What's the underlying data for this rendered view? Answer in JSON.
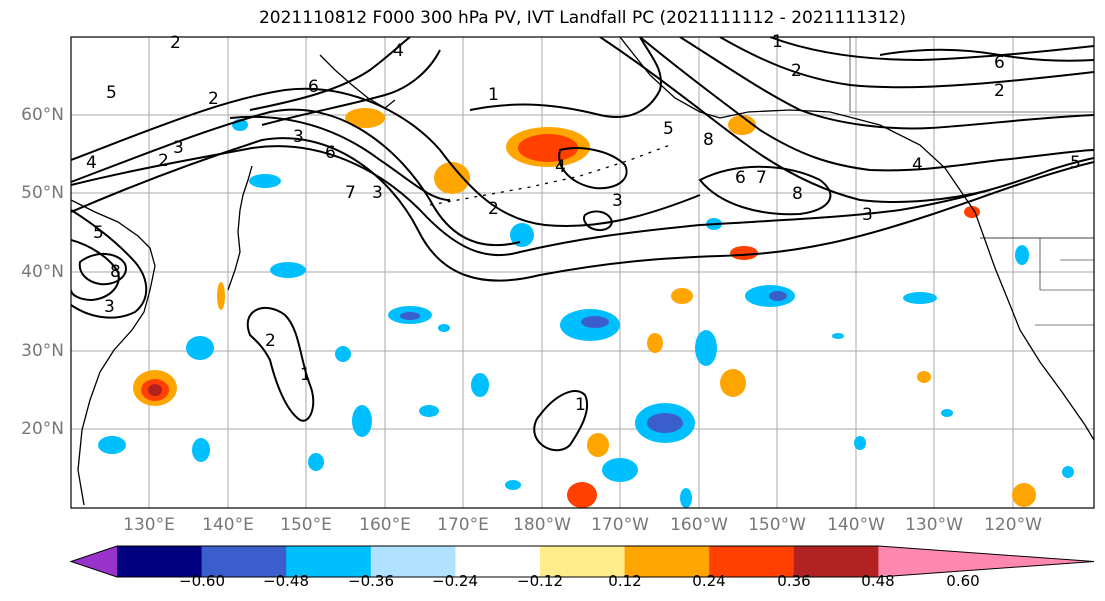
{
  "title": "2021110812 F000 300 hPa PV, IVT Landfall PC (2021111112 - 2021111312)",
  "map": {
    "lat_labels": [
      "60°N",
      "50°N",
      "40°N",
      "30°N",
      "20°N"
    ],
    "lon_labels": [
      "130°E",
      "140°E",
      "150°E",
      "160°E",
      "170°E",
      "180°W",
      "170°W",
      "160°W",
      "150°W",
      "140°W",
      "130°W",
      "120°W"
    ],
    "contour_labels": [
      "1",
      "2",
      "3",
      "4",
      "5",
      "6",
      "7",
      "8"
    ],
    "colors": {
      "land": "#000000",
      "contour": "#000000",
      "grid": "#aaaaaa"
    }
  },
  "colorbar": {
    "tick_labels": [
      "−0.60",
      "−0.48",
      "−0.36",
      "−0.24",
      "−0.12",
      "0.12",
      "0.24",
      "0.36",
      "0.48",
      "0.60"
    ],
    "colors": [
      "#9933cc",
      "#000080",
      "#3a5fcd",
      "#00bfff",
      "#b0e2ff",
      "#ffffff",
      "#ffec8b",
      "#ffa500",
      "#ff4000",
      "#b22222",
      "#ff88b0"
    ]
  }
}
